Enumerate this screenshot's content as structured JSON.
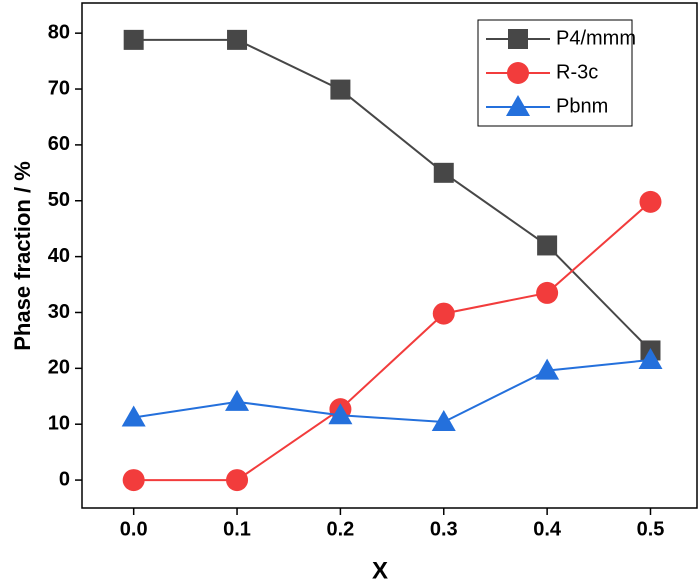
{
  "chart_data": {
    "type": "line",
    "x_label": "X",
    "y_label": "Phase fraction / %",
    "x": [
      0,
      0.1,
      0.2,
      0.3,
      0.4,
      0.5
    ],
    "series": [
      {
        "name": "P4/mmm",
        "color": "#474747",
        "marker": "square",
        "values": [
          78.8,
          78.8,
          69.9,
          55,
          42,
          23.2
        ]
      },
      {
        "name": "R-3c",
        "color": "#f23c3c",
        "marker": "circle",
        "values": [
          0,
          0,
          12.7,
          29.8,
          33.5,
          49.8
        ]
      },
      {
        "name": "Pbnm",
        "color": "#2470dc",
        "marker": "triangle",
        "values": [
          11.2,
          14,
          11.6,
          10.4,
          19.6,
          21.5
        ]
      }
    ],
    "xlim": [
      -0.05,
      0.545
    ],
    "ylim": [
      -5,
      85.4
    ],
    "xticks": [
      {
        "value": 0,
        "label": "0.0"
      },
      0.1,
      0.2,
      0.3,
      0.4,
      0.5
    ],
    "yticks": [
      0,
      10,
      20,
      30,
      40,
      50,
      60,
      70,
      80
    ],
    "legend": "top-right",
    "grid": false
  }
}
